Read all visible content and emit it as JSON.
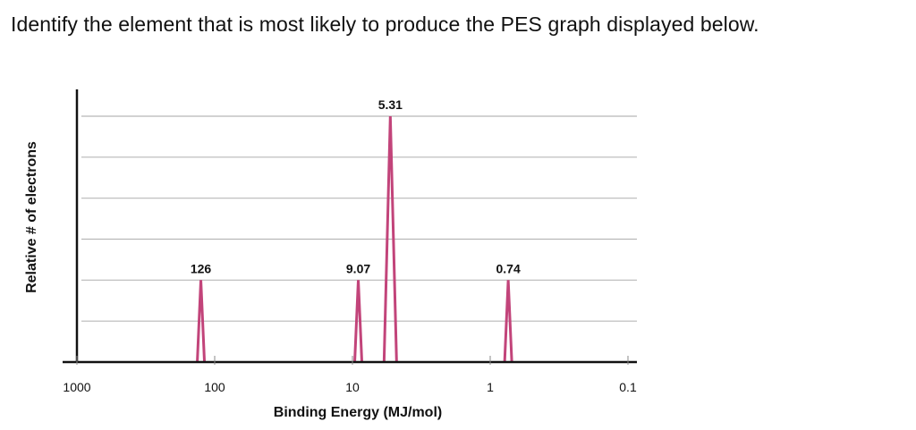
{
  "question": "Identify the element that is most likely to produce the PES graph displayed below.",
  "colors": {
    "peak": "#c2447a",
    "grid": "#b8b8b8",
    "axis": "#111111"
  },
  "chart_data": {
    "type": "bar",
    "xlabel": "Binding Energy (MJ/mol)",
    "ylabel": "Relative # of electrons",
    "x_scale": "log",
    "x_reversed": true,
    "xlim": [
      1000,
      0.1
    ],
    "ylim": [
      0,
      6
    ],
    "grid": true,
    "x_ticks": [
      {
        "value": 1000,
        "label": "1000"
      },
      {
        "value": 100,
        "label": "100"
      },
      {
        "value": 10,
        "label": "10"
      },
      {
        "value": 1,
        "label": "1"
      },
      {
        "value": 0.1,
        "label": "0.1"
      }
    ],
    "peaks": [
      {
        "binding_energy": 126,
        "label": "126",
        "relative_electrons": 2
      },
      {
        "binding_energy": 9.07,
        "label": "9.07",
        "relative_electrons": 2
      },
      {
        "binding_energy": 5.31,
        "label": "5.31",
        "relative_electrons": 6
      },
      {
        "binding_energy": 0.74,
        "label": "0.74",
        "relative_electrons": 2
      }
    ]
  }
}
